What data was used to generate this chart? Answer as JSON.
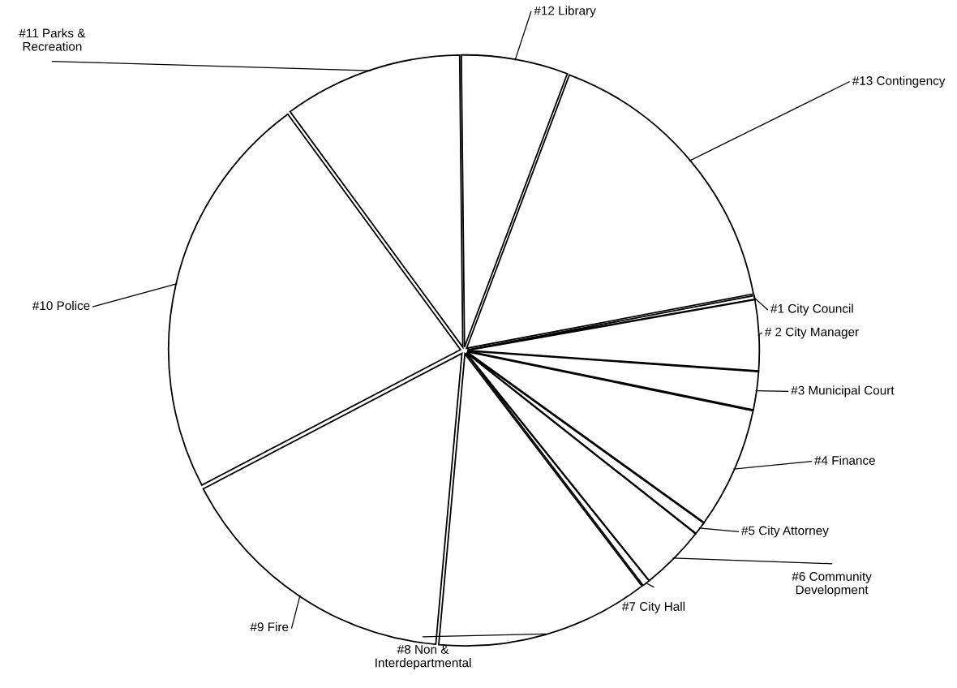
{
  "chart_data": {
    "type": "pie",
    "categories": [
      "#1 City Council",
      "# 2 City Manager",
      "#3 Municipal Court",
      "#4 Finance",
      "#5 City Attorney",
      "#6 Community\nDevelopment",
      "#7 City Hall",
      "#8 Non &\nInterdepartmental",
      "#9 Fire",
      "#10 Police",
      "#11 Parks &\nRecreation",
      "#12 Library",
      "#13 Contingency"
    ],
    "values": [
      0.2,
      3.9,
      2.1,
      6.7,
      0.7,
      3.6,
      0.4,
      11.8,
      15.9,
      22.6,
      9.9,
      5.9,
      16.3
    ],
    "colors": [
      "#ffffff",
      "#ffffff",
      "#ffffff",
      "#ffffff",
      "#ffffff",
      "#ffffff",
      "#ffffff",
      "#ffffff",
      "#ffffff",
      "#ffffff",
      "#ffffff",
      "#ffffff",
      "#ffffff"
    ],
    "legend": false
  }
}
